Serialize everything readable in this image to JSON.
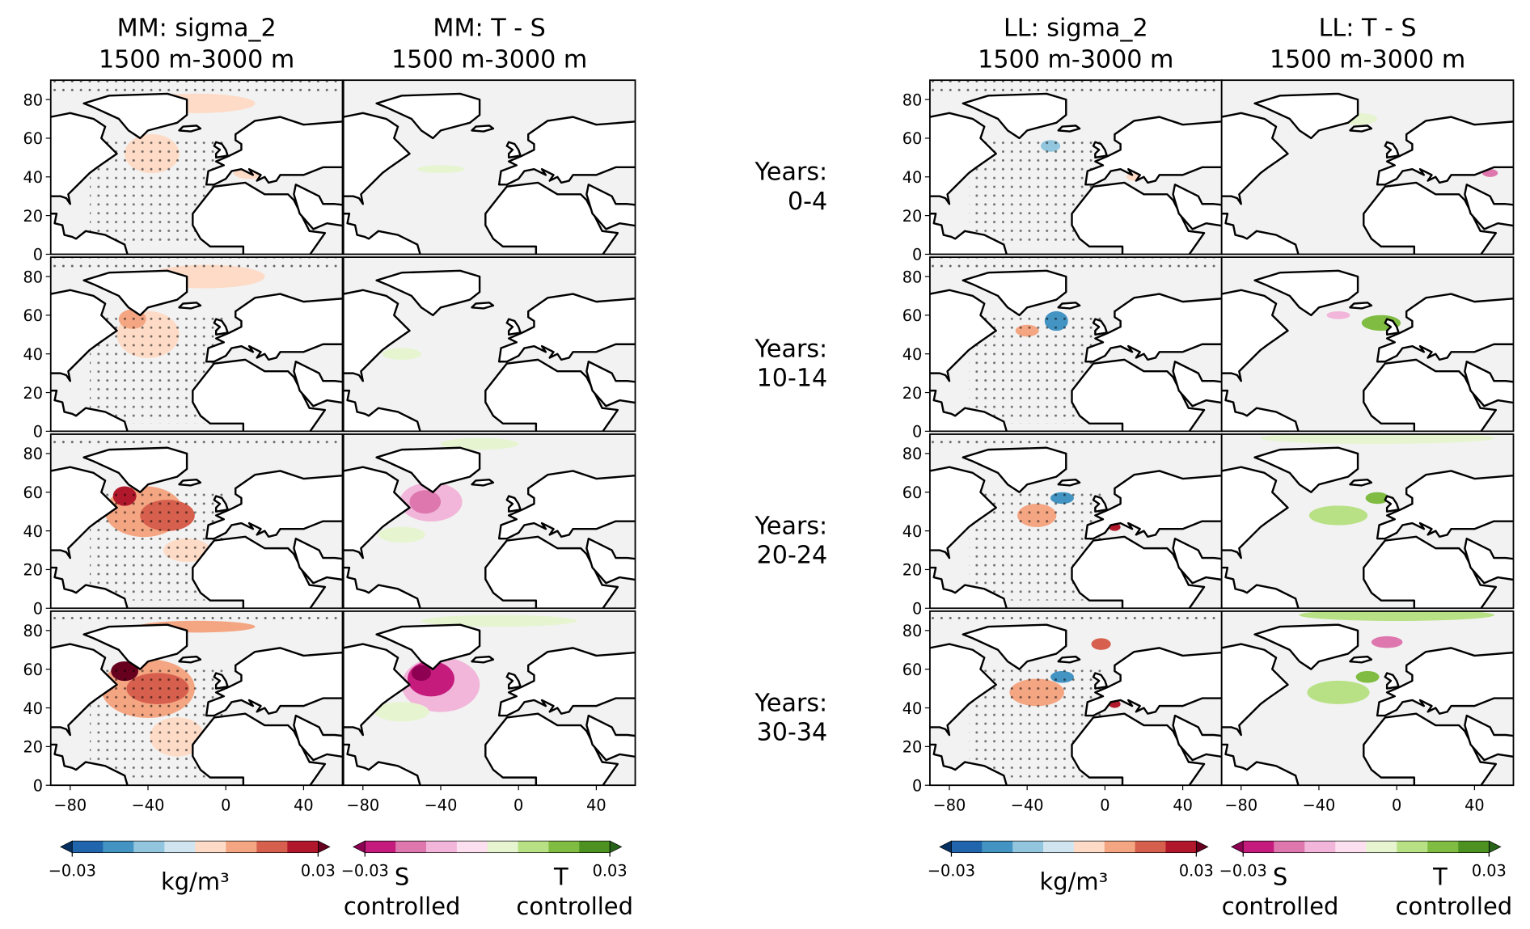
{
  "panels": {
    "columns": [
      {
        "title": [
          "MM: sigma_2",
          "1500 m-3000 m"
        ]
      },
      {
        "title": [
          "MM: T - S",
          "1500 m-3000 m"
        ]
      },
      {
        "title": [
          "LL: sigma_2",
          "1500 m-3000 m"
        ]
      },
      {
        "title": [
          "LL: T - S",
          "1500 m-3000 m"
        ]
      }
    ],
    "rows": [
      [
        "Years:",
        "0-4"
      ],
      [
        "Years:",
        "10-14"
      ],
      [
        "Years:",
        "20-24"
      ],
      [
        "Years:",
        "30-34"
      ]
    ]
  },
  "axes": {
    "xlim": [
      -90,
      60
    ],
    "ylim": [
      0,
      90
    ],
    "xticks": [
      {
        "value": -80,
        "label": "−80"
      },
      {
        "value": -40,
        "label": "−40"
      },
      0,
      40
    ],
    "yticks": [
      0,
      20,
      40,
      60,
      80
    ]
  },
  "colorbars": [
    {
      "ticks": [
        {
          "value": -0.03,
          "label": "−0.03"
        },
        {
          "value": 0.03,
          "label": "0.03"
        }
      ],
      "label": [
        "kg/m³"
      ],
      "colors": [
        "#053061",
        "#2166ac",
        "#4393c3",
        "#92c5de",
        "#d1e5f0",
        "#fddbc7",
        "#f4a582",
        "#d6604d",
        "#b2182b",
        "#67001f"
      ]
    },
    {
      "ticks": [
        {
          "value": -0.03,
          "label": "−0.03"
        },
        {
          "value": 0.03,
          "label": "0.03"
        }
      ],
      "label_left": [
        "S",
        "controlled"
      ],
      "label_right": [
        "T",
        "controlled"
      ],
      "colors": [
        "#8e0152",
        "#c51b7d",
        "#de77ae",
        "#f1b6da",
        "#fde0ef",
        "#e6f5d0",
        "#b8e186",
        "#7fbc41",
        "#4d9221",
        "#276419"
      ]
    }
  ]
}
